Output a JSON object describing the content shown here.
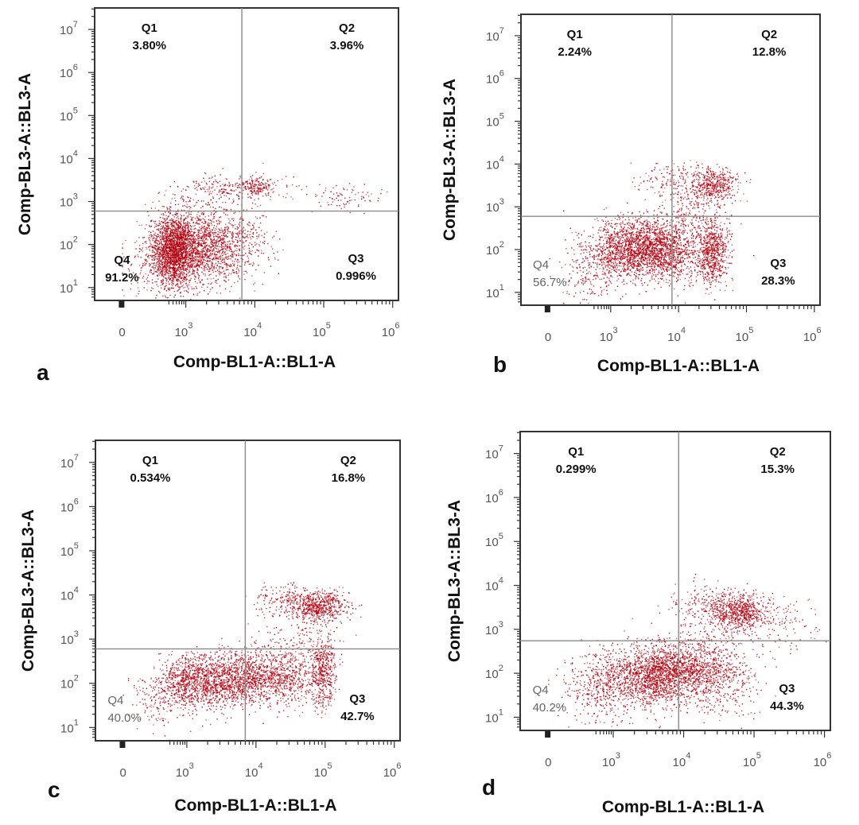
{
  "chart_data": [
    {
      "type": "scatter",
      "panel_label": "a",
      "xlabel": "Comp-BL1-A::BL1-A",
      "ylabel": "Comp-BL3-A::BL3-A",
      "x_scale": "biexponential",
      "y_scale": "log",
      "x_ticks": [
        "0",
        "10^3",
        "10^4",
        "10^5",
        "10^6"
      ],
      "y_ticks": [
        "10^1",
        "10^2",
        "10^3",
        "10^4",
        "10^5",
        "10^6",
        "10^7"
      ],
      "ylim_log10": [
        0.7,
        7.5
      ],
      "gate": {
        "x": 6500,
        "y": 600
      },
      "quadrants": {
        "Q1": {
          "name": "Q1",
          "value": "3.80%"
        },
        "Q2": {
          "name": "Q2",
          "value": "3.96%"
        },
        "Q3": {
          "name": "Q3",
          "value": "0.996%"
        },
        "Q4": {
          "name": "Q4",
          "value": "91.2%"
        }
      },
      "clusters": [
        {
          "x_log": 2.75,
          "y_log": 1.85,
          "sx": 0.28,
          "sy": 0.42,
          "weight": 0.55
        },
        {
          "x_log": 3.4,
          "y_log": 2.0,
          "sx": 0.35,
          "sy": 0.45,
          "weight": 0.3
        },
        {
          "x_log": 3.6,
          "y_log": 3.3,
          "sx": 0.45,
          "sy": 0.18,
          "weight": 0.06
        },
        {
          "x_log": 4.0,
          "y_log": 3.35,
          "sx": 0.12,
          "sy": 0.1,
          "weight": 0.03
        },
        {
          "x_log": 5.3,
          "y_log": 3.1,
          "sx": 0.25,
          "sy": 0.15,
          "weight": 0.02
        },
        {
          "x_log": 2.2,
          "y_log": 1.6,
          "sx": 0.35,
          "sy": 0.5,
          "weight": 0.04
        }
      ]
    },
    {
      "type": "scatter",
      "panel_label": "b",
      "xlabel": "Comp-BL1-A::BL1-A",
      "ylabel": "Comp-BL3-A::BL3-A",
      "x_scale": "biexponential",
      "y_scale": "log",
      "x_ticks": [
        "0",
        "10^3",
        "10^4",
        "10^5",
        "10^6"
      ],
      "y_ticks": [
        "10^1",
        "10^2",
        "10^3",
        "10^4",
        "10^5",
        "10^6",
        "10^7"
      ],
      "ylim_log10": [
        0.7,
        7.5
      ],
      "gate": {
        "x": 8000,
        "y": 600
      },
      "quadrants": {
        "Q1": {
          "name": "Q1",
          "value": "2.24%"
        },
        "Q2": {
          "name": "Q2",
          "value": "12.8%"
        },
        "Q3": {
          "name": "Q3",
          "value": "28.3%"
        },
        "Q4": {
          "name": "Q4",
          "value": "56.7%"
        }
      },
      "clusters": [
        {
          "x_log": 3.4,
          "y_log": 2.0,
          "sx": 0.35,
          "sy": 0.35,
          "weight": 0.45
        },
        {
          "x_log": 3.9,
          "y_log": 2.05,
          "sx": 0.3,
          "sy": 0.35,
          "weight": 0.15
        },
        {
          "x_log": 4.5,
          "y_log": 1.95,
          "sx": 0.12,
          "sy": 0.4,
          "weight": 0.16
        },
        {
          "x_log": 4.5,
          "y_log": 3.5,
          "sx": 0.18,
          "sy": 0.2,
          "weight": 0.1
        },
        {
          "x_log": 4.0,
          "y_log": 3.6,
          "sx": 0.3,
          "sy": 0.25,
          "weight": 0.05
        },
        {
          "x_log": 2.5,
          "y_log": 1.6,
          "sx": 0.35,
          "sy": 0.45,
          "weight": 0.06
        },
        {
          "x_log": 4.2,
          "y_log": 2.8,
          "sx": 0.2,
          "sy": 0.3,
          "weight": 0.03
        }
      ]
    },
    {
      "type": "scatter",
      "panel_label": "c",
      "xlabel": "Comp-BL1-A::BL1-A",
      "ylabel": "Comp-BL3-A::BL3-A",
      "x_scale": "biexponential",
      "y_scale": "log",
      "x_ticks": [
        "0",
        "10^3",
        "10^4",
        "10^5",
        "10^6"
      ],
      "y_ticks": [
        "10^1",
        "10^2",
        "10^3",
        "10^4",
        "10^5",
        "10^6",
        "10^7"
      ],
      "ylim_log10": [
        0.7,
        7.5
      ],
      "gate": {
        "x": 7000,
        "y": 600
      },
      "quadrants": {
        "Q1": {
          "name": "Q1",
          "value": "0.534%"
        },
        "Q2": {
          "name": "Q2",
          "value": "16.8%"
        },
        "Q3": {
          "name": "Q3",
          "value": "42.7%"
        },
        "Q4": {
          "name": "Q4",
          "value": "40.0%"
        }
      },
      "clusters": [
        {
          "x_log": 3.2,
          "y_log": 2.05,
          "sx": 0.35,
          "sy": 0.3,
          "weight": 0.28
        },
        {
          "x_log": 3.8,
          "y_log": 2.15,
          "sx": 0.3,
          "sy": 0.3,
          "weight": 0.2
        },
        {
          "x_log": 4.4,
          "y_log": 2.2,
          "sx": 0.25,
          "sy": 0.35,
          "weight": 0.14
        },
        {
          "x_log": 4.95,
          "y_log": 2.3,
          "sx": 0.1,
          "sy": 0.4,
          "weight": 0.12
        },
        {
          "x_log": 4.9,
          "y_log": 3.75,
          "sx": 0.22,
          "sy": 0.18,
          "weight": 0.15
        },
        {
          "x_log": 4.4,
          "y_log": 3.85,
          "sx": 0.2,
          "sy": 0.2,
          "weight": 0.04
        },
        {
          "x_log": 2.4,
          "y_log": 1.7,
          "sx": 0.35,
          "sy": 0.35,
          "weight": 0.05
        },
        {
          "x_log": 4.6,
          "y_log": 2.9,
          "sx": 0.25,
          "sy": 0.3,
          "weight": 0.02
        }
      ]
    },
    {
      "type": "scatter",
      "panel_label": "d",
      "xlabel": "Comp-BL1-A::BL1-A",
      "ylabel": "Comp-BL3-A::BL3-A",
      "x_scale": "biexponential",
      "y_scale": "log",
      "x_ticks": [
        "0",
        "10^3",
        "10^4",
        "10^5",
        "10^6"
      ],
      "y_ticks": [
        "10^1",
        "10^2",
        "10^3",
        "10^4",
        "10^5",
        "10^6",
        "10^7"
      ],
      "ylim_log10": [
        0.7,
        7.5
      ],
      "gate": {
        "x": 8500,
        "y": 550
      },
      "quadrants": {
        "Q1": {
          "name": "Q1",
          "value": "0.299%"
        },
        "Q2": {
          "name": "Q2",
          "value": "15.3%"
        },
        "Q3": {
          "name": "Q3",
          "value": "44.3%"
        },
        "Q4": {
          "name": "Q4",
          "value": "40.2%"
        }
      },
      "clusters": [
        {
          "x_log": 3.5,
          "y_log": 1.95,
          "sx": 0.35,
          "sy": 0.35,
          "weight": 0.32
        },
        {
          "x_log": 3.95,
          "y_log": 2.1,
          "sx": 0.3,
          "sy": 0.3,
          "weight": 0.2
        },
        {
          "x_log": 4.5,
          "y_log": 1.9,
          "sx": 0.3,
          "sy": 0.4,
          "weight": 0.12
        },
        {
          "x_log": 4.8,
          "y_log": 3.4,
          "sx": 0.2,
          "sy": 0.2,
          "weight": 0.14
        },
        {
          "x_log": 4.4,
          "y_log": 3.55,
          "sx": 0.3,
          "sy": 0.22,
          "weight": 0.06
        },
        {
          "x_log": 2.7,
          "y_log": 1.7,
          "sx": 0.4,
          "sy": 0.4,
          "weight": 0.1
        },
        {
          "x_log": 4.3,
          "y_log": 2.8,
          "sx": 0.25,
          "sy": 0.3,
          "weight": 0.03
        },
        {
          "x_log": 5.4,
          "y_log": 3.2,
          "sx": 0.35,
          "sy": 0.3,
          "weight": 0.03
        }
      ]
    }
  ],
  "colors": {
    "dot": "#b3000f",
    "frame": "#333333",
    "gate_line": "#8a8a8a",
    "tick_text": "#555555"
  }
}
